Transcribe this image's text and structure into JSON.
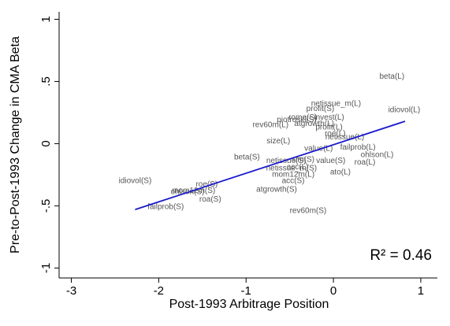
{
  "chart_data": {
    "type": "scatter",
    "ylabel": "Pre-to-Post-1993 Change in CMA Beta",
    "xlabel": "Post-1993 Arbitrage Position",
    "annotation": "R² = 0.46",
    "labels": [
      "beta(L)",
      "netissue_m(L)",
      "idiovol(L)",
      "profit(S)",
      "rome(S)",
      "invest(L)",
      "piotroski(S)",
      "atgrowth(L)",
      "profit(L)",
      "roe(L)",
      "rev60m(L)",
      "netissue(L)",
      "size(L)",
      "failprob(L)",
      "ohlson(L)",
      "value(L)",
      "beta(S)",
      "netissue(S)",
      "um(S)",
      "value(S)",
      "roa(L)",
      "netissue_m(S)",
      "acc(L)",
      "mom12m(L)",
      "ato(L)",
      "acc(S)",
      "atgrowth(S)",
      "idiovol(S)",
      "roe(S)",
      "ohlson(S)",
      "mom12m(S)",
      "roa(S)",
      "failprob(S)",
      "rev60m(S)"
    ],
    "x": [
      0.67,
      0.03,
      0.81,
      -0.15,
      -0.35,
      -0.05,
      -0.42,
      -0.22,
      -0.05,
      0.02,
      -0.72,
      0.13,
      -0.63,
      0.28,
      0.5,
      -0.17,
      -0.99,
      -0.54,
      -0.34,
      -0.03,
      0.36,
      -0.48,
      -0.41,
      -0.46,
      0.08,
      -0.46,
      -0.65,
      -2.27,
      -1.45,
      -1.67,
      -1.6,
      -1.41,
      -1.92,
      -0.29
    ],
    "y": [
      0.54,
      0.32,
      0.27,
      0.28,
      0.21,
      0.21,
      0.19,
      0.16,
      0.13,
      0.08,
      0.15,
      0.05,
      0.02,
      -0.03,
      -0.09,
      -0.04,
      -0.11,
      -0.14,
      -0.13,
      -0.14,
      -0.15,
      -0.2,
      -0.19,
      -0.25,
      -0.23,
      -0.3,
      -0.37,
      -0.3,
      -0.33,
      -0.39,
      -0.38,
      -0.45,
      -0.51,
      -0.54
    ],
    "label_color": "#555555",
    "fit": {
      "x": [
        -2.27,
        0.82
      ],
      "y": [
        -0.53,
        0.18
      ],
      "color": "#1a1acc"
    },
    "xlim": [
      -3.14,
      1.19
    ],
    "ylim": [
      -1.08,
      1.06
    ],
    "xticks": [
      -3,
      -2,
      -1,
      0,
      1
    ],
    "yticks": [
      -1,
      {
        "value": -0.5,
        "label": "-.5"
      },
      0,
      {
        "value": 0.5,
        "label": ".5"
      },
      1
    ]
  }
}
